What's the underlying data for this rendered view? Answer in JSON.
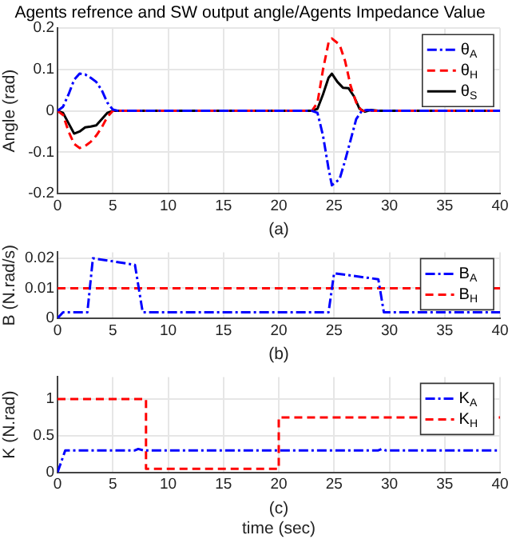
{
  "chart_data": [
    {
      "type": "line",
      "title": "Agents refrence and SW output angle/Agents Impedance Value",
      "xlabel": "(a)",
      "ylabel": "Angle (rad)",
      "xlim": [
        0,
        40
      ],
      "xticks": [
        0,
        5,
        10,
        15,
        20,
        25,
        30,
        35,
        40
      ],
      "ylim": [
        -0.2,
        0.2
      ],
      "yticks": [
        -0.2,
        -0.1,
        0,
        0.1,
        0.2
      ],
      "grid": true,
      "legend": "top right",
      "series": [
        {
          "name": "θ$_{A}$",
          "color": "#0000ff",
          "line_style": "dashdot",
          "x": [
            0,
            0.5,
            1,
            1.5,
            2,
            2.5,
            3,
            3.5,
            4,
            4.5,
            5,
            5.5,
            23,
            23.5,
            24,
            24.5,
            24.8,
            25.5,
            26,
            26.5,
            27,
            27.5,
            28,
            29,
            40
          ],
          "values": [
            0,
            0.01,
            0.04,
            0.075,
            0.09,
            0.088,
            0.08,
            0.07,
            0.05,
            0.02,
            0.003,
            0,
            0,
            -0.005,
            -0.06,
            -0.14,
            -0.18,
            -0.165,
            -0.12,
            -0.07,
            -0.02,
            0,
            0.002,
            0,
            0
          ]
        },
        {
          "name": "θ$_{H}$",
          "color": "#ff0000",
          "line_style": "dashed",
          "x": [
            0,
            0.5,
            1,
            1.5,
            2,
            2.5,
            3,
            3.5,
            4,
            4.5,
            5,
            23,
            23.5,
            24,
            24.5,
            24.8,
            25.5,
            26,
            26.5,
            27,
            27.5,
            40
          ],
          "values": [
            0,
            -0.01,
            -0.05,
            -0.08,
            -0.09,
            -0.085,
            -0.075,
            -0.06,
            -0.04,
            -0.015,
            0,
            0,
            0.02,
            0.1,
            0.165,
            0.175,
            0.16,
            0.12,
            0.06,
            0.02,
            0,
            0
          ]
        },
        {
          "name": "θ$_{S}$",
          "color": "#000000",
          "line_style": "solid",
          "x": [
            0,
            0.5,
            1,
            1.5,
            2,
            2.5,
            3,
            3.5,
            4,
            4.5,
            5,
            23,
            23.5,
            24,
            24.5,
            24.8,
            25.3,
            25.8,
            26.3,
            26.8,
            27.3,
            27.8,
            28.3,
            29,
            40
          ],
          "values": [
            0,
            -0.005,
            -0.03,
            -0.055,
            -0.05,
            -0.04,
            -0.038,
            -0.035,
            -0.02,
            -0.005,
            0,
            0,
            0.005,
            0.04,
            0.08,
            0.09,
            0.07,
            0.056,
            0.055,
            0.035,
            0.005,
            -0.002,
            0.002,
            0,
            0
          ]
        }
      ]
    },
    {
      "type": "line",
      "xlabel": "(b)",
      "ylabel": "B (N.rad/s)",
      "xlim": [
        0,
        40
      ],
      "xticks": [
        0,
        5,
        10,
        15,
        20,
        25,
        30,
        35,
        40
      ],
      "ylim": [
        0,
        0.022
      ],
      "yticks": [
        0,
        0.01,
        0.02
      ],
      "grid": true,
      "legend": "top right",
      "series": [
        {
          "name": "B$_{A}$",
          "color": "#0000ff",
          "line_style": "dashdot",
          "x": [
            0,
            0.5,
            2.7,
            3.2,
            7,
            7.7,
            24.5,
            25,
            29,
            29.5,
            40
          ],
          "values": [
            0,
            0.002,
            0.002,
            0.02,
            0.0178,
            0.002,
            0.002,
            0.015,
            0.013,
            0.002,
            0.002
          ]
        },
        {
          "name": "B$_{H}$",
          "color": "#ff0000",
          "line_style": "dashed",
          "x": [
            0,
            40
          ],
          "values": [
            0.01,
            0.01
          ]
        }
      ]
    },
    {
      "type": "line",
      "xlabel": "time (sec)",
      "annotations": [
        "(c)"
      ],
      "ylabel": "K (N.rad)",
      "xlim": [
        0,
        40
      ],
      "xticks": [
        0,
        5,
        10,
        15,
        20,
        25,
        30,
        35,
        40
      ],
      "ylim": [
        0,
        1.3
      ],
      "yticks": [
        0,
        0.5,
        1
      ],
      "grid": true,
      "legend": "top right",
      "series": [
        {
          "name": "K$_{A}$",
          "color": "#0000ff",
          "line_style": "dashdot",
          "x": [
            0,
            0.7,
            7,
            7.3,
            7.8,
            29,
            29.3,
            29.7,
            40
          ],
          "values": [
            0,
            0.3,
            0.3,
            0.32,
            0.3,
            0.3,
            0.32,
            0.3,
            0.3
          ]
        },
        {
          "name": "K$_{H}$",
          "color": "#ff0000",
          "line_style": "dashed",
          "x": [
            0,
            8,
            8,
            20,
            20,
            40
          ],
          "values": [
            1,
            1,
            0.05,
            0.05,
            0.75,
            0.75
          ]
        }
      ]
    }
  ]
}
